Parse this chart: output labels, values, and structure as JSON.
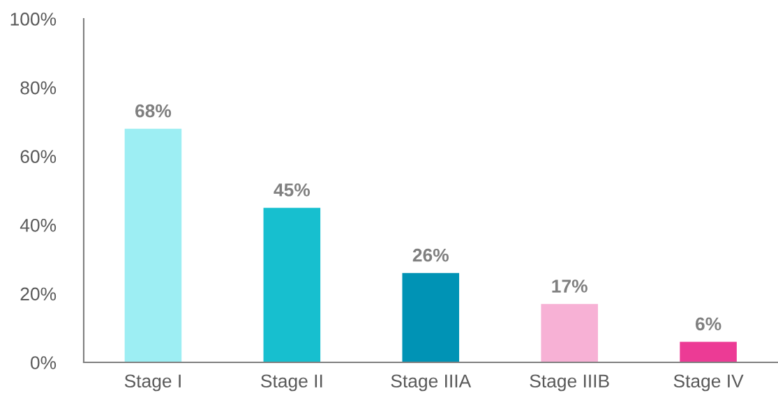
{
  "chart_data": {
    "type": "bar",
    "categories": [
      "Stage I",
      "Stage II",
      "Stage IIIA",
      "Stage IIIB",
      "Stage IV"
    ],
    "values": [
      68,
      45,
      26,
      17,
      6
    ],
    "colors": [
      "#9deef3",
      "#17bfcf",
      "#0093b5",
      "#f7b1d5",
      "#ec3b95"
    ],
    "value_labels": [
      "68%",
      "45%",
      "26%",
      "17%",
      "6%"
    ],
    "ylim": [
      0,
      100
    ],
    "yticks": [
      {
        "value": 0,
        "label": "0%"
      },
      {
        "value": 20,
        "label": "20%"
      },
      {
        "value": 40,
        "label": "40%"
      },
      {
        "value": 60,
        "label": "60%"
      },
      {
        "value": 80,
        "label": "80%"
      },
      {
        "value": 100,
        "label": "100%"
      }
    ],
    "grid": false
  }
}
